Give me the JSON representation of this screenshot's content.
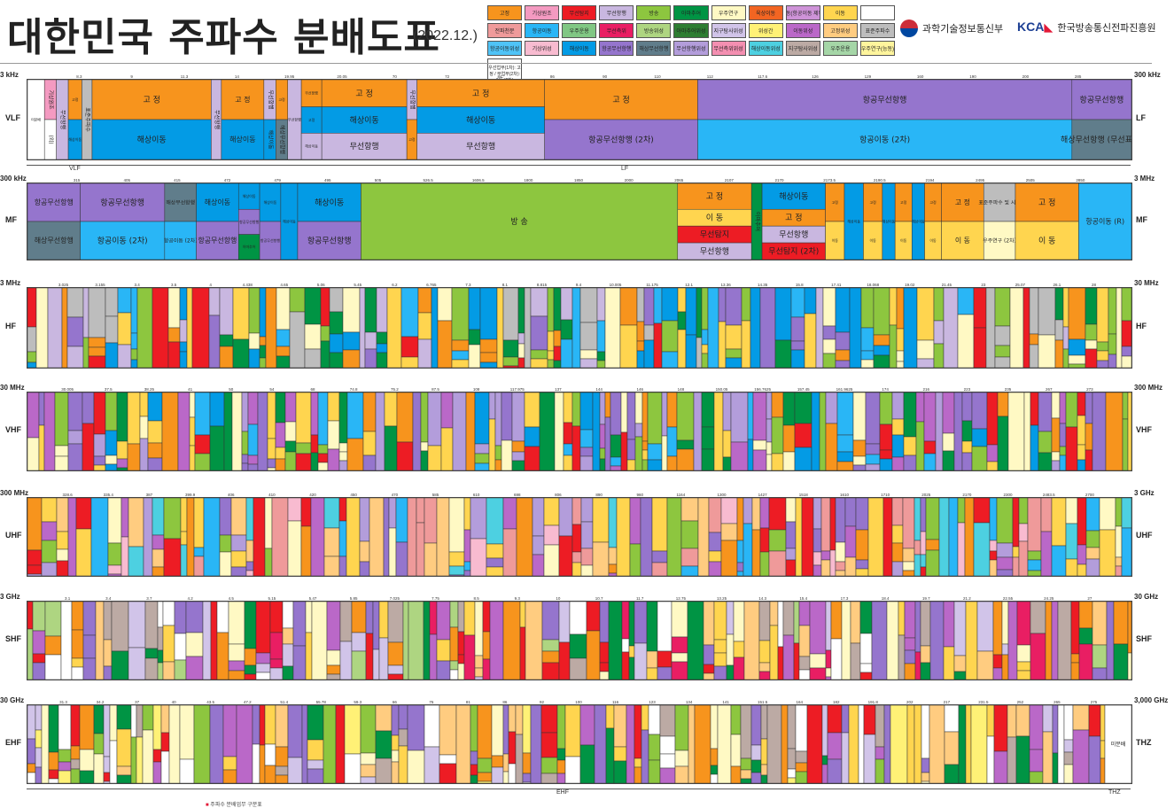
{
  "header": {
    "title": "대한민국 주파수 분배도표",
    "date": "(2022.12.)",
    "org1": "과학기술정보통신부",
    "org2_logo": "KCA",
    "org2": "한국방송통신전파진흥원"
  },
  "legend": [
    {
      "label": "고정",
      "color": "#f7941d"
    },
    {
      "label": "기상원조",
      "color": "#f49ac1"
    },
    {
      "label": "무선탐지",
      "color": "#ed1c24"
    },
    {
      "label": "무선항행",
      "color": "#c9b7e0"
    },
    {
      "label": "방송",
      "color": "#8dc63f"
    },
    {
      "label": "아마추어",
      "color": "#009444"
    },
    {
      "label": "우주연구",
      "color": "#fff9c4"
    },
    {
      "label": "육상이동",
      "color": "#f26522"
    },
    {
      "label": "이동(항공이동 제외)",
      "color": "#ce93d8"
    },
    {
      "label": "이동",
      "color": "#ffd54f"
    },
    {
      "label": "",
      "color": "#ffffff"
    },
    {
      "label": "전파천문",
      "color": "#ef9a9a"
    },
    {
      "label": "항공이동",
      "color": "#29b6f6"
    },
    {
      "label": "우주운용",
      "color": "#81c784"
    },
    {
      "label": "무선측위",
      "color": "#e91e63"
    },
    {
      "label": "방송위성",
      "color": "#aed581"
    },
    {
      "label": "아마추어위성",
      "color": "#2e7d32"
    },
    {
      "label": "지구탐사위성",
      "color": "#d1c4e9"
    },
    {
      "label": "위성간",
      "color": "#fff176"
    },
    {
      "label": "이동위성",
      "color": "#ba68c8"
    },
    {
      "label": "고정위성",
      "color": "#ffcc80"
    },
    {
      "label": "표준주파수",
      "color": "#bdbdbd"
    },
    {
      "label": "항공이동위성",
      "color": "#4fc3f7"
    },
    {
      "label": "기상위성",
      "color": "#f8bbd0"
    },
    {
      "label": "해상이동",
      "color": "#039be5"
    },
    {
      "label": "항공무선항행",
      "color": "#9575cd"
    },
    {
      "label": "해상무선항행",
      "color": "#607d8b"
    },
    {
      "label": "무선항행위성",
      "color": "#b39ddb"
    },
    {
      "label": "무선측위위성",
      "color": "#f48fb1"
    },
    {
      "label": "해상이동위성",
      "color": "#4dd0e1"
    },
    {
      "label": "지구탐사위성",
      "color": "#bcaaa4"
    },
    {
      "label": "우주운용",
      "color": "#a5d6a7"
    },
    {
      "label": "우주연구(능동)",
      "color": "#fff59d"
    }
  ],
  "legend_note": "우선업무(1차): 고 정 / 부업무(2차): 이동(2차)",
  "footnote_mark": "■",
  "footnote": "주파수 분배업무 구분표",
  "chart_data": {
    "type": "heatmap",
    "title": "대한민국 주파수 분배도표",
    "bands": [
      {
        "name_left": "VLF",
        "name_right": "LF",
        "start_label": "3 kHz",
        "end_label": "300 kHz",
        "subranges": [
          {
            "label": "VLF"
          },
          {
            "label": "LF"
          }
        ],
        "tick_labels": [
          "8.3",
          "9",
          "11.3",
          "14",
          "19.95",
          "20.05",
          "70",
          "72",
          "84",
          "86",
          "90",
          "110",
          "112",
          "117.6",
          "126",
          "129",
          "160",
          "190",
          "200",
          "285"
        ],
        "segments": [
          {
            "w": 2,
            "label": "미분배",
            "stack": [
              {
                "c": "#ffffff",
                "t": "미분배"
              }
            ]
          },
          {
            "w": 1.4,
            "stack": [
              {
                "c": "#f49ac1",
                "t": "기상원조"
              },
              {
                "c": "#ffffff",
                "t": "(외)"
              }
            ]
          },
          {
            "w": 1.4,
            "stack": [
              {
                "c": "#c9b7e0",
                "t": "무선항행"
              }
            ]
          },
          {
            "w": 1.6,
            "stack": [
              {
                "c": "#f7941d",
                "t": "고정"
              },
              {
                "c": "#039be5",
                "t": "해상이동"
              }
            ]
          },
          {
            "w": 1.2,
            "stack": [
              {
                "c": "#bdbdbd",
                "t": "표준주파수"
              }
            ]
          },
          {
            "w": 14,
            "stack": [
              {
                "c": "#f7941d",
                "t": "고 정"
              },
              {
                "c": "#039be5",
                "t": "해상이동"
              }
            ]
          },
          {
            "w": 1.2,
            "stack": [
              {
                "c": "#c9b7e0",
                "t": "무선항행"
              }
            ]
          },
          {
            "w": 5,
            "stack": [
              {
                "c": "#f7941d",
                "t": "고 정"
              },
              {
                "c": "#039be5",
                "t": "해상이동"
              }
            ]
          },
          {
            "w": 1.4,
            "stack": [
              {
                "c": "#c9b7e0",
                "t": "무선항행"
              },
              {
                "c": "#039be5",
                "t": "해상이동"
              }
            ]
          },
          {
            "w": 1.4,
            "stack": [
              {
                "c": "#f7941d",
                "t": "고정"
              },
              {
                "c": "#607d8b",
                "t": "해상무선항행"
              }
            ]
          },
          {
            "w": 1.6,
            "stack": [
              {
                "c": "#c9b7e0",
                "t": "무선항행"
              }
            ]
          },
          {
            "w": 2.4,
            "stack": [
              {
                "c": "#f7941d",
                "t": "무선항행"
              },
              {
                "c": "#039be5",
                "t": "고정"
              },
              {
                "c": "#c9b7e0",
                "t": "해상이동"
              }
            ]
          },
          {
            "w": 10,
            "stack": [
              {
                "c": "#f7941d",
                "t": "고 정"
              },
              {
                "c": "#039be5",
                "t": "해상이동"
              },
              {
                "c": "#c9b7e0",
                "t": "무선항행"
              }
            ]
          },
          {
            "w": 1.2,
            "stack": [
              {
                "c": "#c9b7e0",
                "t": "무선항행"
              },
              {
                "c": "#f7941d",
                "t": "고정"
              }
            ]
          },
          {
            "w": 15,
            "stack": [
              {
                "c": "#f7941d",
                "t": "고 정"
              },
              {
                "c": "#039be5",
                "t": "해상이동"
              },
              {
                "c": "#c9b7e0",
                "t": "무선항행"
              }
            ]
          },
          {
            "w": 18,
            "stack": [
              {
                "c": "#f7941d",
                "t": "고 정"
              },
              {
                "c": "#9575cd",
                "t": "항공무선항행 (2차)"
              }
            ]
          },
          {
            "w": 44,
            "stack": [
              {
                "c": "#9575cd",
                "t": "항공무선항행"
              },
              {
                "c": "#29b6f6",
                "t": "항공이동 (2차)"
              }
            ]
          },
          {
            "w": 7,
            "stack": [
              {
                "c": "#9575cd",
                "t": "항공무선항행"
              },
              {
                "c": "#607d8b",
                "t": "해상무선항행 (무선표지)"
              }
            ]
          }
        ]
      },
      {
        "name_left": "MF",
        "name_right": "MF",
        "start_label": "300 kHz",
        "end_label": "3 MHz",
        "tick_labels": [
          "315",
          "405",
          "415",
          "472",
          "479",
          "495",
          "505",
          "526.5",
          "1606.5",
          "1800",
          "1850",
          "2000",
          "2065",
          "2107",
          "2170",
          "2173.5",
          "2190.5",
          "2194",
          "2495",
          "2505",
          "2850"
        ],
        "segments": [
          {
            "w": 5,
            "stack": [
              {
                "c": "#9575cd",
                "t": "항공무선항행"
              },
              {
                "c": "#607d8b",
                "t": "해상무선항행"
              }
            ]
          },
          {
            "w": 8,
            "stack": [
              {
                "c": "#9575cd",
                "t": "항공무선항행"
              },
              {
                "c": "#29b6f6",
                "t": "항공이동 (2차)"
              }
            ]
          },
          {
            "w": 3,
            "stack": [
              {
                "c": "#607d8b",
                "t": "해상무선항행"
              },
              {
                "c": "#29b6f6",
                "t": "항공이동 (2차)"
              }
            ]
          },
          {
            "w": 4,
            "stack": [
              {
                "c": "#039be5",
                "t": "해상이동"
              },
              {
                "c": "#9575cd",
                "t": "항공무선항행"
              }
            ]
          },
          {
            "w": 2,
            "stack": [
              {
                "c": "#039be5",
                "t": "해상이동"
              },
              {
                "c": "#9575cd",
                "t": "항공무선항행"
              },
              {
                "c": "#009444",
                "t": "아마추어"
              }
            ]
          },
          {
            "w": 2,
            "stack": [
              {
                "c": "#039be5",
                "t": "해상이동"
              },
              {
                "c": "#9575cd",
                "t": "항공무선항행"
              }
            ]
          },
          {
            "w": 1.6,
            "stack": [
              {
                "c": "#039be5",
                "t": "해상이동"
              }
            ]
          },
          {
            "w": 6,
            "stack": [
              {
                "c": "#039be5",
                "t": "해상이동"
              },
              {
                "c": "#9575cd",
                "t": "항공무선항행"
              }
            ]
          },
          {
            "w": 30,
            "stack": [
              {
                "c": "#8dc63f",
                "t": "방 송"
              }
            ]
          },
          {
            "w": 7,
            "stack": [
              {
                "c": "#f7941d",
                "t": "고 정"
              },
              {
                "c": "#ffd54f",
                "t": "이 동"
              },
              {
                "c": "#ed1c24",
                "t": "무선탐지"
              },
              {
                "c": "#c9b7e0",
                "t": "무선항행"
              }
            ]
          },
          {
            "w": 1,
            "stack": [
              {
                "c": "#009444",
                "t": "아마추어"
              }
            ]
          },
          {
            "w": 6,
            "stack": [
              {
                "c": "#039be5",
                "t": "해상이동"
              },
              {
                "c": "#f7941d",
                "t": "고 정"
              },
              {
                "c": "#c9b7e0",
                "t": "무선항행"
              },
              {
                "c": "#ed1c24",
                "t": "무선탐지 (2차)"
              }
            ]
          },
          {
            "w": 1.8,
            "stack": [
              {
                "c": "#f7941d",
                "t": "고정"
              },
              {
                "c": "#ffd54f",
                "t": "이동"
              }
            ]
          },
          {
            "w": 1.8,
            "stack": [
              {
                "c": "#039be5",
                "t": "해상이동"
              }
            ]
          },
          {
            "w": 1.8,
            "stack": [
              {
                "c": "#f7941d",
                "t": "고정"
              },
              {
                "c": "#ffd54f",
                "t": "이동"
              }
            ]
          },
          {
            "w": 1.2,
            "stack": [
              {
                "c": "#039be5",
                "t": "해상이동"
              }
            ]
          },
          {
            "w": 1.6,
            "stack": [
              {
                "c": "#f7941d",
                "t": "고정"
              },
              {
                "c": "#ffd54f",
                "t": "이동"
              }
            ]
          },
          {
            "w": 1.2,
            "stack": [
              {
                "c": "#039be5",
                "t": "해상이동"
              }
            ]
          },
          {
            "w": 1.6,
            "stack": [
              {
                "c": "#f7941d",
                "t": "고정"
              },
              {
                "c": "#ffd54f",
                "t": "이동"
              }
            ]
          },
          {
            "w": 4,
            "stack": [
              {
                "c": "#f7941d",
                "t": "고 정"
              },
              {
                "c": "#ffd54f",
                "t": "이 동"
              }
            ]
          },
          {
            "w": 3,
            "stack": [
              {
                "c": "#bdbdbd",
                "t": "표준주파수 및 시보"
              },
              {
                "c": "#fff9c4",
                "t": "우주연구 (2차)"
              }
            ]
          },
          {
            "w": 6,
            "stack": [
              {
                "c": "#f7941d",
                "t": "고 정"
              },
              {
                "c": "#ffd54f",
                "t": "이 동"
              }
            ]
          },
          {
            "w": 5,
            "stack": [
              {
                "c": "#29b6f6",
                "t": "항공이동 (R)"
              }
            ]
          }
        ]
      },
      {
        "name_left": "HF",
        "name_right": "HF",
        "start_label": "3 MHz",
        "end_label": "30 MHz",
        "pattern": "dense",
        "tick_labels": [
          "3.025",
          "3.155",
          "3.4",
          "3.5",
          "4",
          "4.438",
          "4.65",
          "5.06",
          "5.45",
          "6.2",
          "6.765",
          "7.3",
          "8.1",
          "8.815",
          "9.4",
          "10.005",
          "11.175",
          "12.1",
          "13.36",
          "14.35",
          "15.8",
          "17.41",
          "18.068",
          "19.02",
          "21.45",
          "23",
          "25.07",
          "26.1",
          "28"
        ],
        "palette": [
          "#039be5",
          "#f7941d",
          "#ffd54f",
          "#29b6f6",
          "#8dc63f",
          "#9575cd",
          "#009444",
          "#bdbdbd",
          "#ed1c24",
          "#c9b7e0",
          "#fff9c4"
        ]
      },
      {
        "name_left": "VHF",
        "name_right": "VHF",
        "start_label": "30 MHz",
        "end_label": "300 MHz",
        "pattern": "dense",
        "tick_labels": [
          "30.005",
          "37.5",
          "38.25",
          "41",
          "50",
          "54",
          "68",
          "74.8",
          "75.2",
          "87.5",
          "108",
          "117.975",
          "137",
          "144",
          "146",
          "148",
          "150.05",
          "156.7625",
          "157.45",
          "161.9625",
          "174",
          "216",
          "223",
          "235",
          "267",
          "273"
        ],
        "palette": [
          "#f7941d",
          "#ffd54f",
          "#8dc63f",
          "#9575cd",
          "#039be5",
          "#29b6f6",
          "#ed1c24",
          "#009444",
          "#fff9c4",
          "#ba68c8",
          "#b39ddb"
        ]
      },
      {
        "name_left": "UHF",
        "name_right": "UHF",
        "start_label": "300 MHz",
        "end_label": "3 GHz",
        "pattern": "dense",
        "tick_labels": [
          "328.6",
          "335.4",
          "387",
          "399.9",
          "406",
          "410",
          "420",
          "450",
          "470",
          "585",
          "610",
          "698",
          "806",
          "890",
          "960",
          "1164",
          "1300",
          "1427",
          "1518",
          "1610",
          "1710",
          "2025",
          "2170",
          "2300",
          "2483.5",
          "2700"
        ],
        "palette": [
          "#f7941d",
          "#ffd54f",
          "#ba68c8",
          "#ed1c24",
          "#8dc63f",
          "#9575cd",
          "#b39ddb",
          "#ffcc80",
          "#f8bbd0",
          "#29b6f6",
          "#ef9a9a",
          "#fff9c4",
          "#4dd0e1"
        ]
      },
      {
        "name_left": "SHF",
        "name_right": "SHF",
        "start_label": "3 GHz",
        "end_label": "30 GHz",
        "pattern": "dense",
        "tick_labels": [
          "3.1",
          "3.4",
          "3.7",
          "4.2",
          "4.5",
          "5.15",
          "5.47",
          "5.85",
          "7.025",
          "7.75",
          "8.5",
          "9.3",
          "10",
          "10.7",
          "11.7",
          "12.75",
          "13.25",
          "14.3",
          "15.4",
          "17.3",
          "18.4",
          "19.7",
          "21.2",
          "22.55",
          "24.25",
          "27"
        ],
        "palette": [
          "#f7941d",
          "#ffcc80",
          "#ffd54f",
          "#ed1c24",
          "#ba68c8",
          "#d1c4e9",
          "#fff9c4",
          "#e91e63",
          "#9575cd",
          "#aed581",
          "#009444",
          "#bcaaa4",
          "#ffffff"
        ]
      },
      {
        "name_left": "EHF",
        "name_right": "THZ",
        "start_label": "30 GHz",
        "end_label": "3,000 GHz",
        "subranges": [
          {
            "label": "EHF"
          },
          {
            "label": "THZ"
          }
        ],
        "pattern": "dense",
        "tick_labels": [
          "31.3",
          "34.2",
          "37",
          "40",
          "43.5",
          "47.2",
          "51.4",
          "55.78",
          "59.3",
          "66",
          "76",
          "81",
          "86",
          "92",
          "100",
          "116",
          "123",
          "134",
          "141",
          "151.5",
          "164",
          "182",
          "191.8",
          "202",
          "217",
          "231.5",
          "252",
          "265",
          "275"
        ],
        "palette": [
          "#ffcc80",
          "#f7941d",
          "#ffd54f",
          "#ed1c24",
          "#ba68c8",
          "#d1c4e9",
          "#fff9c4",
          "#fff176",
          "#bcaaa4",
          "#8dc63f",
          "#009444",
          "#9575cd",
          "#ffffff"
        ],
        "tail": {
          "label": "미분배"
        }
      }
    ]
  }
}
